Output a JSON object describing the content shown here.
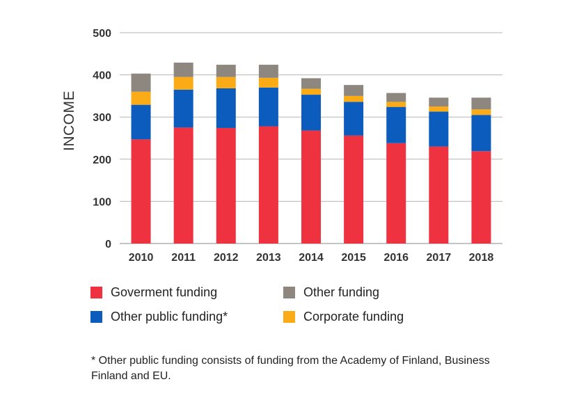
{
  "chart_data": {
    "type": "stacked-bar",
    "title": "",
    "xlabel": "",
    "ylabel": "INCOME",
    "ylim": [
      0,
      500
    ],
    "yticks": [
      0,
      100,
      200,
      300,
      400,
      500
    ],
    "categories": [
      "2010",
      "2011",
      "2012",
      "2013",
      "2014",
      "2015",
      "2016",
      "2017",
      "2018"
    ],
    "series": [
      {
        "name": "Goverment funding",
        "color": "#ee3240",
        "values": [
          247,
          275,
          274,
          278,
          268,
          256,
          238,
          230,
          219
        ]
      },
      {
        "name": "Other public funding*",
        "color": "#0b5cbd",
        "values": [
          82,
          90,
          94,
          92,
          85,
          80,
          86,
          83,
          86
        ]
      },
      {
        "name": "Corporate funding",
        "color": "#fbab16",
        "values": [
          31,
          30,
          27,
          23,
          14,
          14,
          12,
          12,
          13
        ]
      },
      {
        "name": "Other funding",
        "color": "#8e8780",
        "values": [
          43,
          34,
          29,
          31,
          25,
          26,
          21,
          21,
          28
        ]
      }
    ],
    "legend_order": [
      0,
      3,
      1,
      2
    ],
    "footnote": "* Other public funding consists of funding from the Academy of Finland, Business Finland and EU."
  }
}
